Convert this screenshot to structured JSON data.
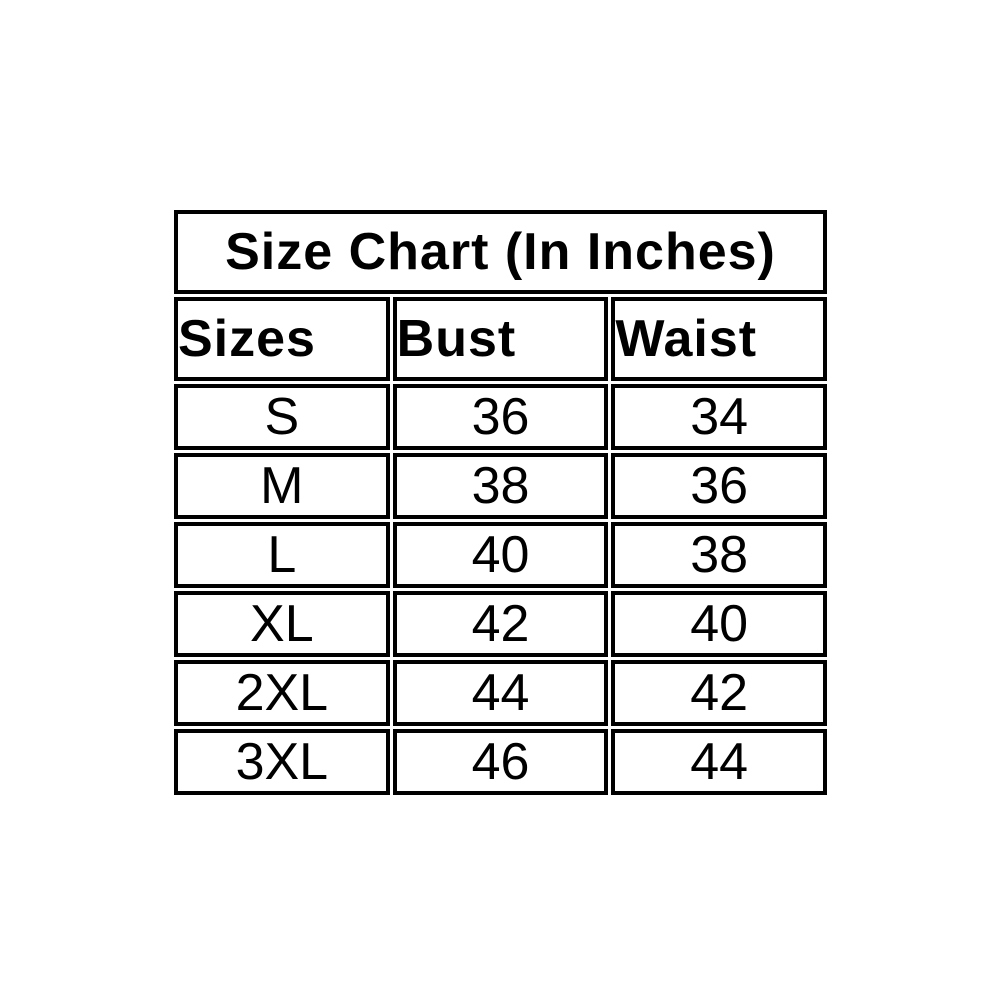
{
  "page": {
    "background": "#ffffff"
  },
  "table_colors": {
    "page_bg": "#ffffff",
    "title_bg": "#ffff00",
    "header_bg": "#92d050",
    "cell_bg": "#ffffff",
    "border": "#000000",
    "text": "#000000"
  },
  "chart_data": {
    "type": "table",
    "title": "Size Chart (In Inches)",
    "columns": [
      "Sizes",
      "Bust",
      "Waist"
    ],
    "rows": [
      [
        "S",
        "36",
        "34"
      ],
      [
        "M",
        "38",
        "36"
      ],
      [
        "L",
        "40",
        "38"
      ],
      [
        "XL",
        "42",
        "40"
      ],
      [
        "2XL",
        "44",
        "42"
      ],
      [
        "3XL",
        "46",
        "44"
      ]
    ],
    "units": "inches",
    "layout": "title row spans all columns; header row tinted green; data rows white; thick black cell borders with thin white spacing between cells"
  }
}
